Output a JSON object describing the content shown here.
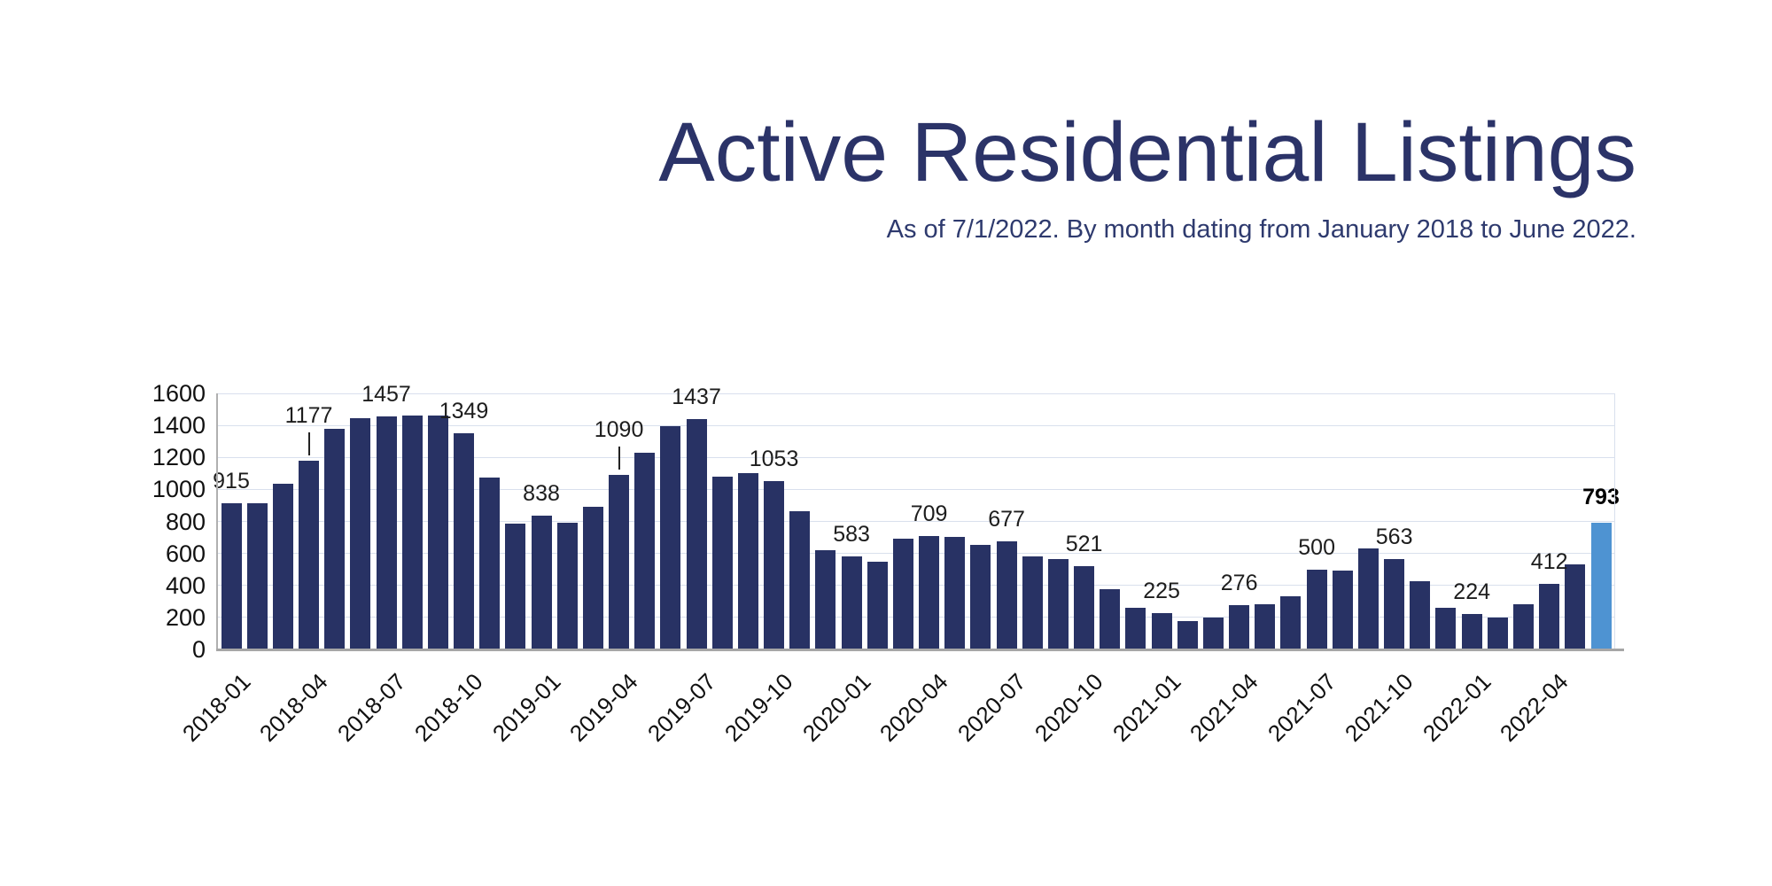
{
  "chart_data": {
    "type": "bar",
    "title": "Active Residential Listings",
    "subtitle": "As of 7/1/2022. By month dating from January 2018 to June 2022.",
    "categories": [
      "2018-01",
      "2018-02",
      "2018-03",
      "2018-04",
      "2018-05",
      "2018-06",
      "2018-07",
      "2018-08",
      "2018-09",
      "2018-10",
      "2018-11",
      "2018-12",
      "2019-01",
      "2019-02",
      "2019-03",
      "2019-04",
      "2019-05",
      "2019-06",
      "2019-07",
      "2019-08",
      "2019-09",
      "2019-10",
      "2019-11",
      "2019-12",
      "2020-01",
      "2020-02",
      "2020-03",
      "2020-04",
      "2020-05",
      "2020-06",
      "2020-07",
      "2020-08",
      "2020-09",
      "2020-10",
      "2020-11",
      "2020-12",
      "2021-01",
      "2021-02",
      "2021-03",
      "2021-04",
      "2021-05",
      "2021-06",
      "2021-07",
      "2021-08",
      "2021-09",
      "2021-10",
      "2021-11",
      "2021-12",
      "2022-01",
      "2022-02",
      "2022-03",
      "2022-04",
      "2022-05",
      "2022-06"
    ],
    "values": [
      915,
      915,
      1035,
      1177,
      1380,
      1445,
      1457,
      1460,
      1460,
      1349,
      1075,
      785,
      838,
      790,
      890,
      1090,
      1230,
      1395,
      1437,
      1080,
      1100,
      1053,
      865,
      620,
      583,
      550,
      690,
      709,
      705,
      655,
      677,
      580,
      565,
      521,
      375,
      260,
      225,
      180,
      200,
      276,
      280,
      330,
      500,
      495,
      630,
      563,
      425,
      260,
      224,
      200,
      280,
      412,
      530,
      793
    ],
    "x_tick_labels": [
      "2018-01",
      "2018-04",
      "2018-07",
      "2018-10",
      "2019-01",
      "2019-04",
      "2019-07",
      "2019-10",
      "2020-01",
      "2020-04",
      "2020-07",
      "2020-10",
      "2021-01",
      "2021-04",
      "2021-07",
      "2021-10",
      "2022-01",
      "2022-04"
    ],
    "y_ticks": [
      0,
      200,
      400,
      600,
      800,
      1000,
      1200,
      1400,
      1600
    ],
    "ylim": [
      0,
      1600
    ],
    "grid": true,
    "legend": "none",
    "bar_color": "#283264",
    "highlight_color": "#4e93d2",
    "highlight_index": 53,
    "data_labels": [
      {
        "index": 0,
        "text": "915"
      },
      {
        "index": 3,
        "text": "1177",
        "leader": true
      },
      {
        "index": 6,
        "text": "1457"
      },
      {
        "index": 9,
        "text": "1349"
      },
      {
        "index": 12,
        "text": "838"
      },
      {
        "index": 15,
        "text": "1090",
        "leader": true
      },
      {
        "index": 18,
        "text": "1437"
      },
      {
        "index": 21,
        "text": "1053"
      },
      {
        "index": 24,
        "text": "583"
      },
      {
        "index": 27,
        "text": "709"
      },
      {
        "index": 30,
        "text": "677"
      },
      {
        "index": 33,
        "text": "521"
      },
      {
        "index": 36,
        "text": "225"
      },
      {
        "index": 39,
        "text": "276"
      },
      {
        "index": 42,
        "text": "500"
      },
      {
        "index": 45,
        "text": "563"
      },
      {
        "index": 48,
        "text": "224"
      },
      {
        "index": 51,
        "text": "412"
      },
      {
        "index": 53,
        "text": "793",
        "bold": true
      }
    ],
    "colors": {
      "title_text": "#2b3368",
      "subtitle_text": "#2e3a6e",
      "gridline": "#d9e0ed",
      "axis_line": "#a6a6a6",
      "y_axis_line": "#b0b0b0",
      "tick_text": "#111111",
      "data_label_text": "#1d1d1d"
    }
  }
}
